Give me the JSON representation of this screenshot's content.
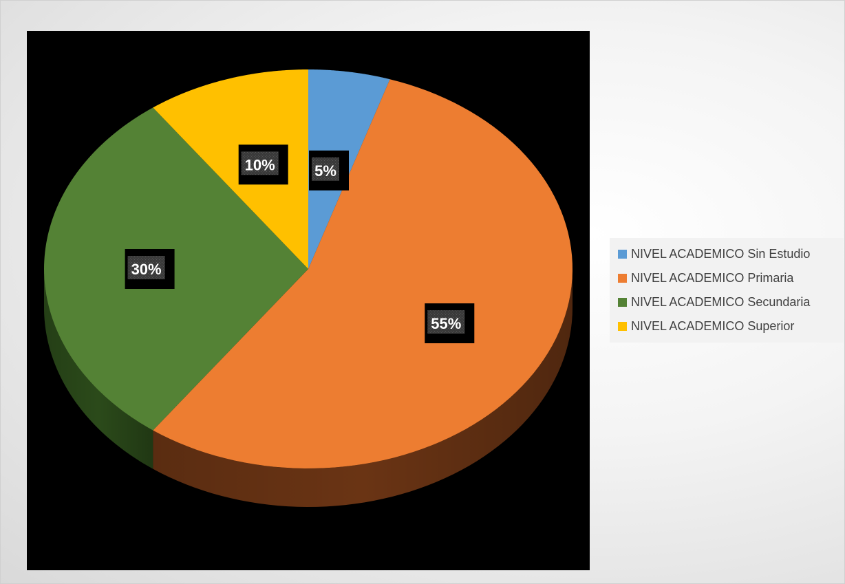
{
  "chart_data": {
    "type": "pie",
    "style": "3d",
    "categories": [
      "NIVEL ACADEMICO Sin Estudio",
      "NIVEL ACADEMICO Primaria",
      "NIVEL ACADEMICO Secundaria",
      "NIVEL ACADEMICO Superior"
    ],
    "values": [
      5,
      55,
      30,
      10
    ],
    "data_labels": [
      "5%",
      "55%",
      "30%",
      "10%"
    ],
    "colors": [
      "#5B9BD5",
      "#ED7D31",
      "#548235",
      "#FFC000"
    ],
    "side_colors": [
      "#2e5f8a",
      "#6a3414",
      "#2b4a1a",
      "#8a6a00"
    ],
    "plot_background": "#000000",
    "legend_position": "right"
  },
  "legend": {
    "items": [
      {
        "label": "NIVEL ACADEMICO Sin Estudio",
        "color": "#5B9BD5"
      },
      {
        "label": "NIVEL ACADEMICO Primaria",
        "color": "#ED7D31"
      },
      {
        "label": "NIVEL ACADEMICO Secundaria",
        "color": "#548235"
      },
      {
        "label": "NIVEL ACADEMICO Superior",
        "color": "#FFC000"
      }
    ]
  }
}
